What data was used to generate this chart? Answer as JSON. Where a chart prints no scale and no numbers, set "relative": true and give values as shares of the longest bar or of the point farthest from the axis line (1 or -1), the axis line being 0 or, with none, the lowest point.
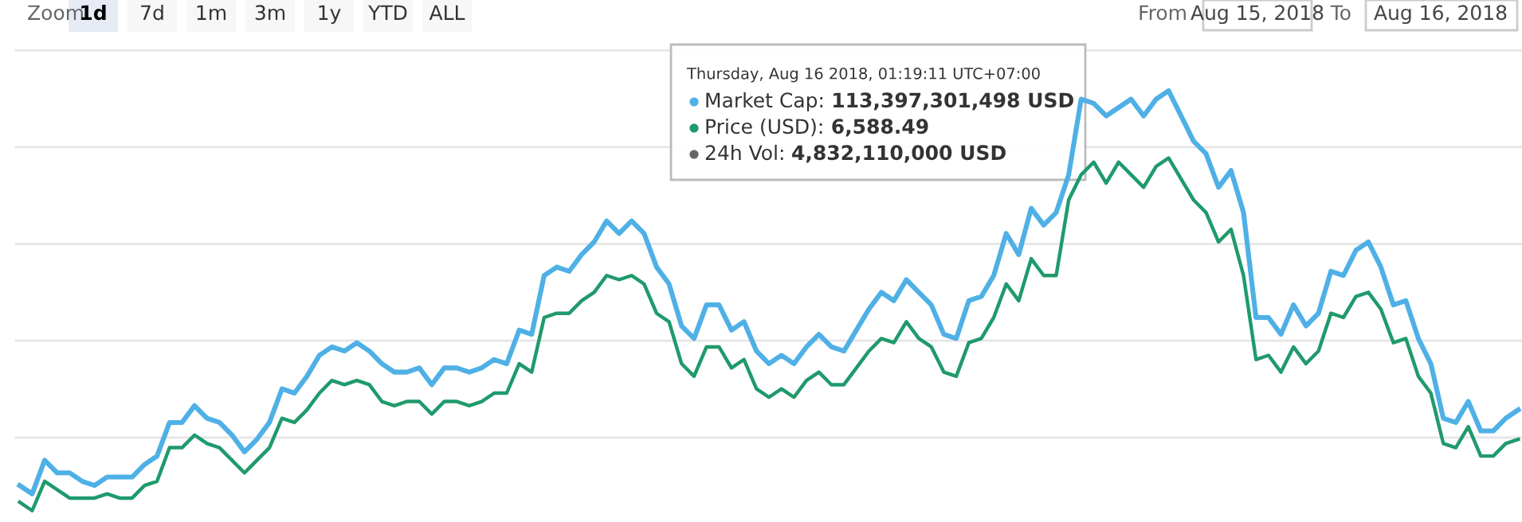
{
  "chart_data": {
    "type": "line",
    "relative": true,
    "grid": "y",
    "marker": "none",
    "line_style": "solid",
    "categories": [
      null,
      null,
      null,
      null,
      null,
      null,
      null,
      null,
      null,
      null,
      null,
      null,
      null,
      null,
      null,
      null,
      null,
      null,
      null,
      null,
      null,
      null,
      null,
      null,
      null,
      null,
      null,
      null,
      null,
      null,
      null,
      null,
      null,
      null,
      null,
      null,
      null,
      null,
      null,
      null,
      null,
      null,
      null,
      null,
      null,
      null,
      null,
      null,
      null,
      null,
      null,
      null,
      null,
      null,
      null,
      null,
      null,
      null,
      null,
      null,
      null,
      null,
      null,
      null,
      null,
      null,
      null,
      null,
      null,
      null,
      null,
      null,
      null,
      null,
      null,
      null,
      null,
      null,
      null,
      null,
      null,
      null,
      null,
      null,
      null,
      null,
      null,
      null,
      null,
      null,
      null,
      null,
      null,
      null,
      null,
      null,
      null,
      null,
      null,
      null,
      null,
      null,
      null,
      null,
      null,
      null,
      null,
      null,
      null,
      null,
      null,
      null,
      null,
      null,
      null,
      null,
      null,
      null,
      null,
      null,
      null
    ],
    "series": [
      {
        "color": "#4fb0e6",
        "values": [
          0.06,
          0.04,
          0.12,
          0.09,
          0.09,
          0.07,
          0.06,
          0.08,
          0.08,
          0.08,
          0.11,
          0.13,
          0.21,
          0.21,
          0.25,
          0.22,
          0.21,
          0.18,
          0.14,
          0.17,
          0.21,
          0.29,
          0.28,
          0.32,
          0.37,
          0.39,
          0.38,
          0.4,
          0.38,
          0.35,
          0.33,
          0.33,
          0.34,
          0.3,
          0.34,
          0.34,
          0.33,
          0.34,
          0.36,
          0.35,
          0.43,
          0.42,
          0.56,
          0.58,
          0.57,
          0.61,
          0.64,
          0.69,
          0.66,
          0.69,
          0.66,
          0.58,
          0.54,
          0.44,
          0.41,
          0.49,
          0.49,
          0.43,
          0.45,
          0.38,
          0.35,
          0.37,
          0.35,
          0.39,
          0.42,
          0.39,
          0.38,
          0.43,
          0.48,
          0.52,
          0.5,
          0.55,
          0.52,
          0.49,
          0.42,
          0.41,
          0.5,
          0.51,
          0.56,
          0.66,
          0.61,
          0.72,
          0.68,
          0.71,
          0.8,
          0.98,
          0.97,
          0.94,
          0.96,
          0.98,
          0.94,
          0.98,
          1,
          0.94,
          0.88,
          0.85,
          0.77,
          0.81,
          0.71,
          0.46,
          0.46,
          0.42,
          0.49,
          0.44,
          0.47,
          0.57,
          0.56,
          0.62,
          0.64,
          0.58,
          0.49,
          0.5,
          0.41,
          0.35,
          0.22,
          0.21,
          0.26,
          0.19,
          0.19,
          0.22,
          0.24
        ]
      },
      {
        "color": "#1f9a6c",
        "values": [
          0.02,
          0,
          0.07,
          0.05,
          0.03,
          0.03,
          0.03,
          0.04,
          0.03,
          0.03,
          0.06,
          0.07,
          0.15,
          0.15,
          0.18,
          0.16,
          0.15,
          0.12,
          0.09,
          0.12,
          0.15,
          0.22,
          0.21,
          0.24,
          0.28,
          0.31,
          0.3,
          0.31,
          0.3,
          0.26,
          0.25,
          0.26,
          0.26,
          0.23,
          0.26,
          0.26,
          0.25,
          0.26,
          0.28,
          0.28,
          0.35,
          0.33,
          0.46,
          0.47,
          0.47,
          0.5,
          0.52,
          0.56,
          0.55,
          0.56,
          0.54,
          0.47,
          0.45,
          0.35,
          0.32,
          0.39,
          0.39,
          0.34,
          0.36,
          0.29,
          0.27,
          0.29,
          0.27,
          0.31,
          0.33,
          0.3,
          0.3,
          0.34,
          0.38,
          0.41,
          0.4,
          0.45,
          0.41,
          0.39,
          0.33,
          0.32,
          0.4,
          0.41,
          0.46,
          0.54,
          0.5,
          0.6,
          0.56,
          0.56,
          0.74,
          0.8,
          0.83,
          0.78,
          0.83,
          0.8,
          0.77,
          0.82,
          0.84,
          0.79,
          0.74,
          0.71,
          0.64,
          0.67,
          0.56,
          0.36,
          0.37,
          0.33,
          0.39,
          0.35,
          0.38,
          0.47,
          0.46,
          0.51,
          0.52,
          0.48,
          0.4,
          0.41,
          0.32,
          0.28,
          0.16,
          0.15,
          0.2,
          0.13,
          0.13,
          0.16,
          0.17
        ]
      }
    ],
    "annotations": [
      "Zoom",
      "1d",
      "7d",
      "1m",
      "3m",
      "1y",
      "YTD",
      "ALL",
      "From",
      "Aug 15, 2018",
      "To",
      "Aug 16, 2018",
      "Thursday, Aug 16 2018, 01:19:11 UTC+07:00",
      "Market Cap: 113,397,301,498 USD",
      "Price (USD): 6,588.49",
      "24h Vol: 4,832,110,000 USD"
    ]
  }
}
